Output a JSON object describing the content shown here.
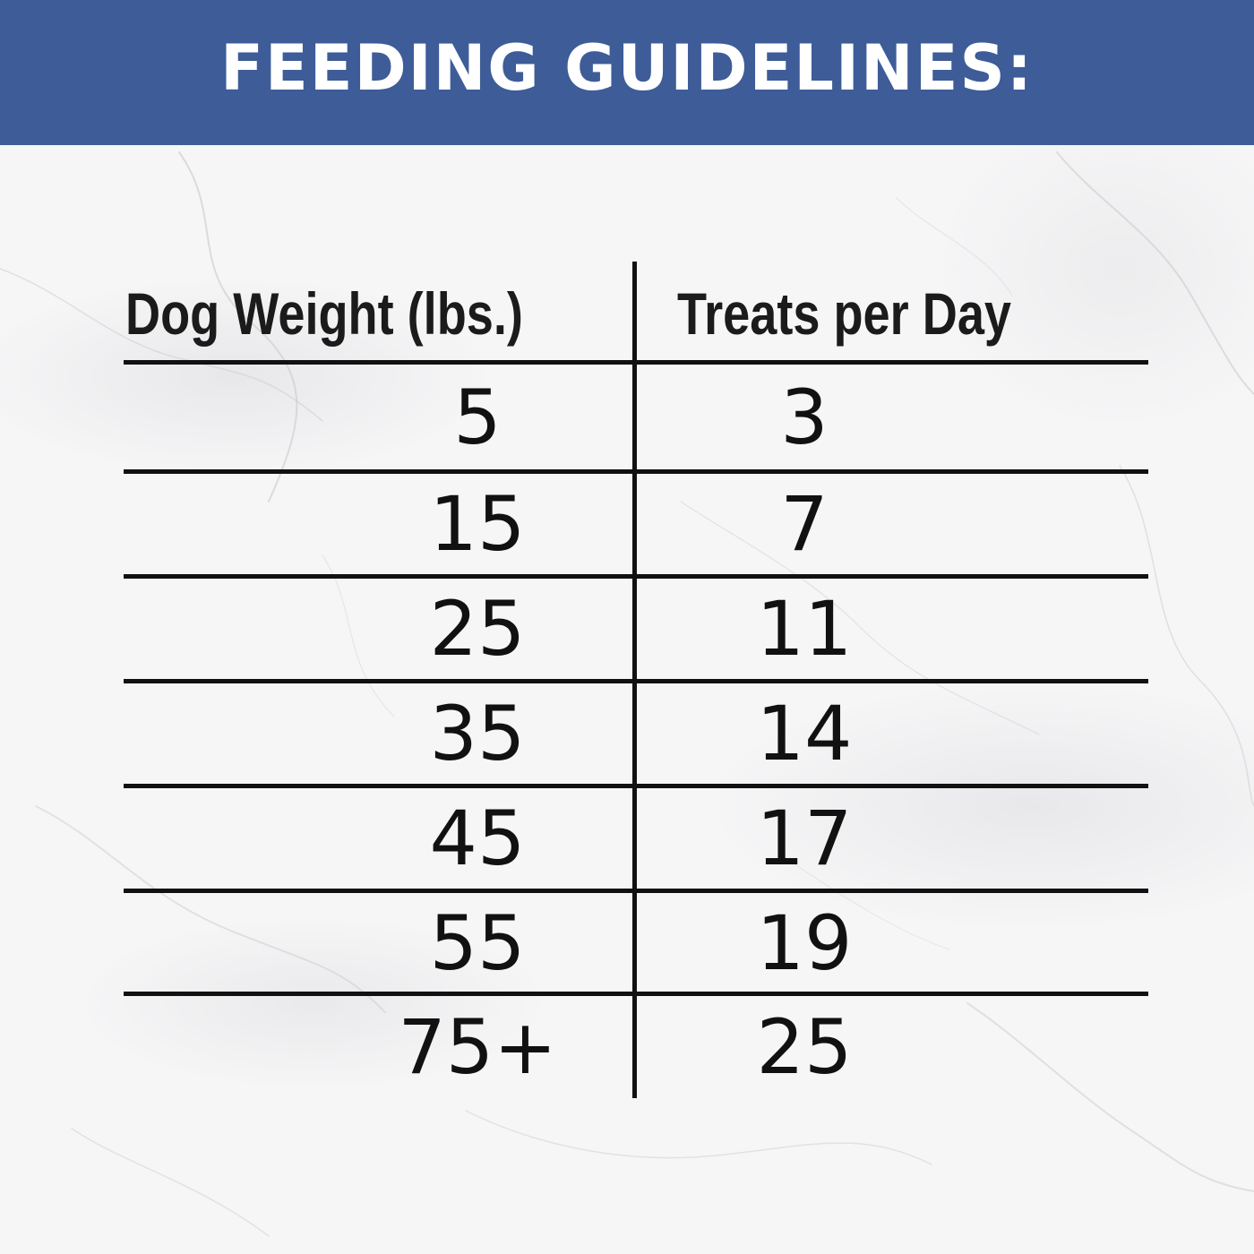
{
  "banner": {
    "title": "FEEDING GUIDELINES:",
    "background_color": "#3d5c98",
    "text_color": "#ffffff"
  },
  "table": {
    "headers": {
      "weight": "Dog Weight (lbs.)",
      "treats": "Treats per Day"
    },
    "rows": [
      {
        "weight": "5",
        "treats": "3"
      },
      {
        "weight": "15",
        "treats": "7"
      },
      {
        "weight": "25",
        "treats": "11"
      },
      {
        "weight": "35",
        "treats": "14"
      },
      {
        "weight": "45",
        "treats": "17"
      },
      {
        "weight": "55",
        "treats": "19"
      },
      {
        "weight": "75+",
        "treats": "25"
      }
    ]
  },
  "background": {
    "style": "white-marble"
  }
}
